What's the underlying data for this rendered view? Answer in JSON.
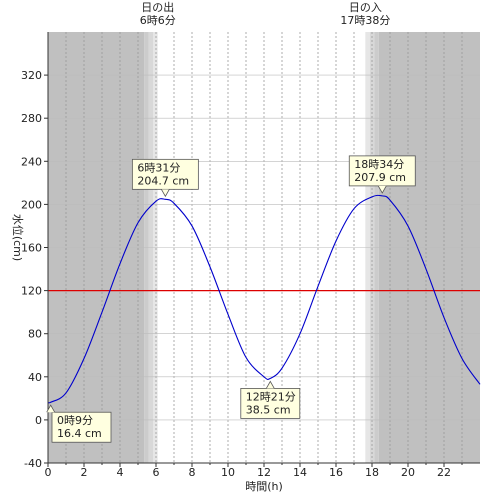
{
  "chart_data": {
    "type": "line",
    "xlabel": "時間(h)",
    "ylabel": "水位(cm)",
    "xlim": [
      0,
      24
    ],
    "ylim": [
      -40,
      360
    ],
    "x_ticks": [
      0,
      2,
      4,
      6,
      8,
      10,
      12,
      14,
      16,
      18,
      20,
      22
    ],
    "x_tick_labels": [
      "0",
      "2",
      "4",
      "6",
      "8",
      "10",
      "12",
      "14",
      "16",
      "18",
      "20",
      "22"
    ],
    "y_ticks": [
      -40,
      0,
      40,
      80,
      120,
      160,
      200,
      240,
      280,
      320
    ],
    "y_tick_labels": [
      "-40",
      "0",
      "40",
      "80",
      "120",
      "160",
      "200",
      "240",
      "280",
      "320"
    ],
    "grid": true,
    "reference_line": {
      "value": 120,
      "color": "#dd0000"
    },
    "series": [
      {
        "color": "#0000cc",
        "x": [
          0,
          0.15,
          1,
          2,
          3,
          4,
          5,
          6,
          6.52,
          7,
          8,
          9,
          10,
          11,
          12,
          12.35,
          13,
          14,
          15,
          16,
          17,
          18,
          18.57,
          19,
          20,
          21,
          22,
          23,
          24
        ],
        "y": [
          16.5,
          16.4,
          25,
          57,
          100,
          145,
          183,
          203,
          204.7,
          201,
          180,
          142,
          98,
          58,
          40,
          38.5,
          48,
          80,
          124,
          166,
          196,
          207,
          207.9,
          204,
          180,
          140,
          95,
          57,
          33
        ]
      }
    ],
    "daylight": {
      "sunrise_hour": 6.1,
      "sunset_hour": 17.63,
      "sunrise_label_top": "日の出",
      "sunrise_label_bottom": "6時6分",
      "sunset_label_top": "日の入",
      "sunset_label_bottom": "17時38分",
      "night_color": "#c0c0c0",
      "twilight_colors": [
        "#cccccc",
        "#d8d8d8",
        "#e6e6e6"
      ],
      "day_color": "#ffffff"
    },
    "annotations": [
      {
        "time_text": "0時9分",
        "value_text": "16.4 cm",
        "x": 0.15,
        "y": 16.4,
        "side": "below"
      },
      {
        "time_text": "6時31分",
        "value_text": "204.7 cm",
        "x": 6.52,
        "y": 204.7,
        "side": "above"
      },
      {
        "time_text": "12時21分",
        "value_text": "38.5 cm",
        "x": 12.35,
        "y": 38.5,
        "side": "below"
      },
      {
        "time_text": "18時34分",
        "value_text": "207.9 cm",
        "x": 18.57,
        "y": 207.9,
        "side": "above"
      }
    ]
  }
}
